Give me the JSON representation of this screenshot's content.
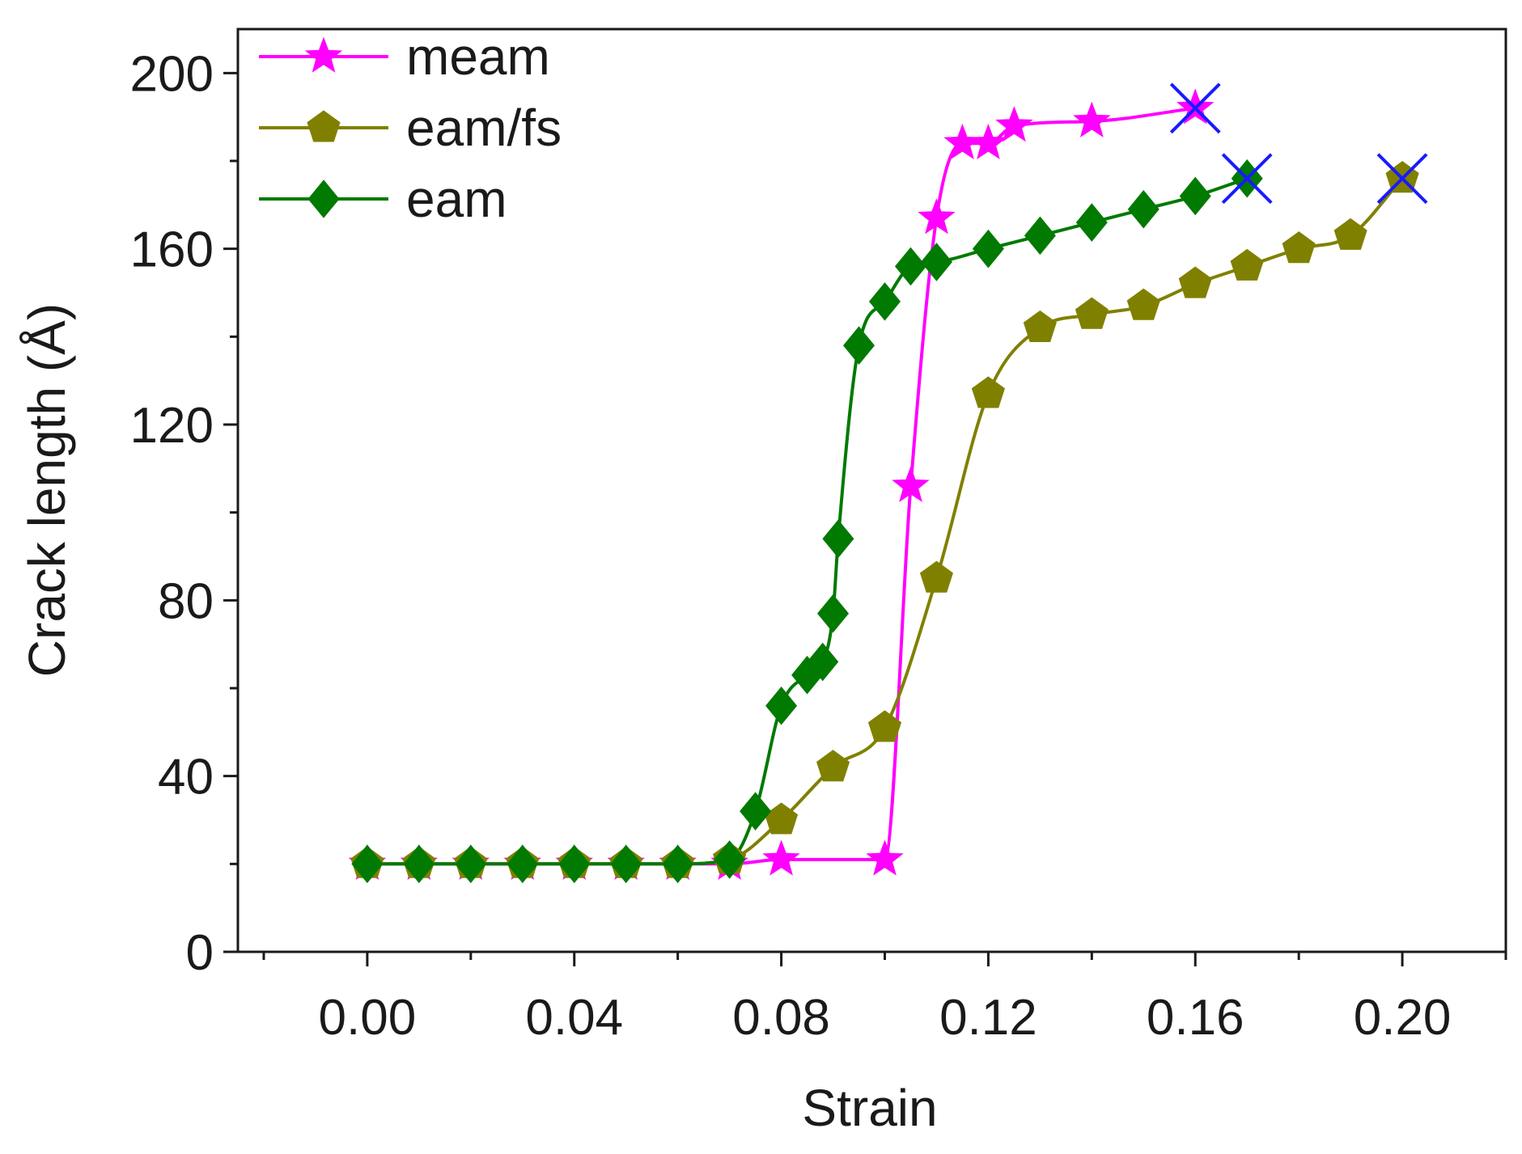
{
  "chart_data": {
    "type": "line",
    "title": "",
    "xlabel": "Strain",
    "ylabel": "Crack length (Å)",
    "xlim": [
      -0.025,
      0.22
    ],
    "ylim": [
      0,
      210
    ],
    "x_ticks": [
      0.0,
      0.04,
      0.08,
      0.12,
      0.16,
      0.2
    ],
    "x_tick_labels": [
      "0.00",
      "0.04",
      "0.08",
      "0.12",
      "0.16",
      "0.20"
    ],
    "y_ticks": [
      0,
      40,
      80,
      120,
      160,
      200
    ],
    "y_tick_labels": [
      "0",
      "40",
      "80",
      "120",
      "160",
      "200"
    ],
    "grid": false,
    "legend_position": "top-left",
    "series": [
      {
        "name": "meam",
        "color": "#ff00ff",
        "marker": "star",
        "x": [
          0.0,
          0.01,
          0.02,
          0.03,
          0.04,
          0.05,
          0.06,
          0.07,
          0.08,
          0.1,
          0.105,
          0.11,
          0.115,
          0.12,
          0.125,
          0.14,
          0.16
        ],
        "y": [
          20,
          20,
          20,
          20,
          20,
          20,
          20,
          20,
          21,
          21,
          106,
          167,
          184,
          184,
          188,
          189,
          192
        ],
        "fracture": {
          "x": 0.16,
          "y": 192
        }
      },
      {
        "name": "eam/fs",
        "color": "#808000",
        "marker": "pentagon",
        "x": [
          0.0,
          0.01,
          0.02,
          0.03,
          0.04,
          0.05,
          0.06,
          0.07,
          0.08,
          0.09,
          0.1,
          0.11,
          0.12,
          0.13,
          0.14,
          0.15,
          0.16,
          0.17,
          0.18,
          0.19,
          0.2
        ],
        "y": [
          20,
          20,
          20,
          20,
          20,
          20,
          20,
          21,
          30,
          42,
          51,
          85,
          127,
          142,
          145,
          147,
          152,
          156,
          160,
          163,
          176
        ],
        "fracture": {
          "x": 0.2,
          "y": 176
        }
      },
      {
        "name": "eam",
        "color": "#007a00",
        "marker": "diamond",
        "x": [
          0.0,
          0.01,
          0.02,
          0.03,
          0.04,
          0.05,
          0.06,
          0.07,
          0.075,
          0.08,
          0.085,
          0.088,
          0.09,
          0.091,
          0.095,
          0.1,
          0.105,
          0.11,
          0.12,
          0.13,
          0.14,
          0.15,
          0.16,
          0.17
        ],
        "y": [
          20,
          20,
          20,
          20,
          20,
          20,
          20,
          21,
          32,
          56,
          63,
          66,
          77,
          94,
          138,
          148,
          156,
          157,
          160,
          163,
          166,
          169,
          172,
          176
        ],
        "fracture": {
          "x": 0.17,
          "y": 176
        }
      }
    ],
    "fracture_marker_color": "#1a1aff"
  }
}
